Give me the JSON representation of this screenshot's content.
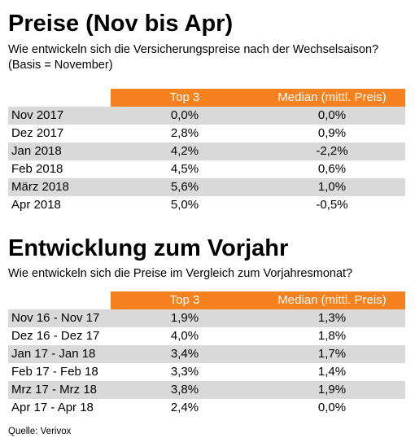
{
  "table1": {
    "title": "Preise (Nov bis Apr)",
    "subtitle": "Wie entwickeln sich die Versicherungspreise nach der Wechselsaison?",
    "subtitle2": "(Basis = November)",
    "columns": [
      "Top 3",
      "Median (mittl. Preis)"
    ],
    "rows": [
      {
        "label": "Nov 2017",
        "top3": "0,0%",
        "median": "0,0%"
      },
      {
        "label": "Dez 2017",
        "top3": "2,8%",
        "median": "0,9%"
      },
      {
        "label": "Jan 2018",
        "top3": "4,2%",
        "median": "-2,2%"
      },
      {
        "label": "Feb 2018",
        "top3": "4,5%",
        "median": "0,6%"
      },
      {
        "label": "März 2018",
        "top3": "5,6%",
        "median": "1,0%"
      },
      {
        "label": "Apr 2018",
        "top3": "5,0%",
        "median": "-0,5%"
      }
    ]
  },
  "table2": {
    "title": "Entwicklung zum Vorjahr",
    "subtitle": "Wie entwickeln sich die Preise im Vergleich zum Vorjahresmonat?",
    "columns": [
      "Top 3",
      "Median (mittl. Preis)"
    ],
    "rows": [
      {
        "label": "Nov 16 - Nov 17",
        "top3": "1,9%",
        "median": "1,3%"
      },
      {
        "label": "Dez 16 - Dez 17",
        "top3": "4,0%",
        "median": "1,8%"
      },
      {
        "label": "Jan 17 - Jan 18",
        "top3": "3,4%",
        "median": "1,7%"
      },
      {
        "label": "Feb 17 - Feb 18",
        "top3": "3,3%",
        "median": "1,4%"
      },
      {
        "label": "Mrz 17 - Mrz 18",
        "top3": "3,8%",
        "median": "1,9%"
      },
      {
        "label": "Apr 17 - Apr 18",
        "top3": "2,4%",
        "median": "0,0%"
      }
    ]
  },
  "source": "Quelle: Verivox",
  "colors": {
    "header": "#f5821f",
    "band": "#d9d9d9"
  },
  "chart_data": [
    {
      "type": "table",
      "title": "Preise (Nov bis Apr)",
      "columns": [
        "",
        "Top 3",
        "Median (mittl. Preis)"
      ],
      "rows": [
        [
          "Nov 2017",
          "0,0%",
          "0,0%"
        ],
        [
          "Dez 2017",
          "2,8%",
          "0,9%"
        ],
        [
          "Jan 2018",
          "4,2%",
          "-2,2%"
        ],
        [
          "Feb 2018",
          "4,5%",
          "0,6%"
        ],
        [
          "März 2018",
          "5,6%",
          "1,0%"
        ],
        [
          "Apr 2018",
          "5,0%",
          "-0,5%"
        ]
      ]
    },
    {
      "type": "table",
      "title": "Entwicklung zum Vorjahr",
      "columns": [
        "",
        "Top 3",
        "Median (mittl. Preis)"
      ],
      "rows": [
        [
          "Nov 16 - Nov 17",
          "1,9%",
          "1,3%"
        ],
        [
          "Dez 16 - Dez 17",
          "4,0%",
          "1,8%"
        ],
        [
          "Jan 17 - Jan 18",
          "3,4%",
          "1,7%"
        ],
        [
          "Feb 17 - Feb 18",
          "3,3%",
          "1,4%"
        ],
        [
          "Mrz 17 - Mrz 18",
          "3,8%",
          "1,9%"
        ],
        [
          "Apr 17 - Apr 18",
          "2,4%",
          "0,0%"
        ]
      ]
    }
  ]
}
